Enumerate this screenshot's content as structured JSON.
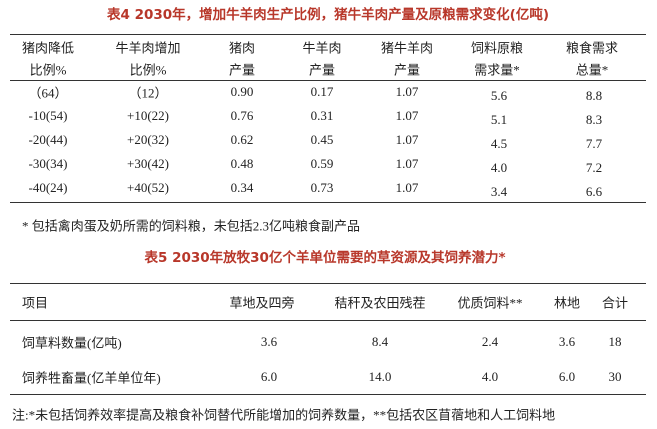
{
  "table4": {
    "title": "表4  2030年，增加牛羊肉生产比例，猪牛羊肉产量及原粮需求变化(亿吨)",
    "header": [
      [
        "猪肉降低",
        "比例%"
      ],
      [
        "牛羊肉增加",
        "比例%"
      ],
      [
        "猪肉",
        "产量"
      ],
      [
        "牛羊肉",
        "产量"
      ],
      [
        "猪牛羊肉",
        "产量"
      ],
      [
        "饲料原粮",
        "需求量*"
      ],
      [
        "粮食需求",
        "总量*"
      ]
    ],
    "rows": [
      [
        "（64）",
        "（12）",
        "0.90",
        "0.17",
        "1.07",
        "5.6",
        "8.8"
      ],
      [
        "-10(54)",
        "+10(22)",
        "0.76",
        "0.31",
        "1.07",
        "5.1",
        "8.3"
      ],
      [
        "-20(44)",
        "+20(32)",
        "0.62",
        "0.45",
        "1.07",
        "4.5",
        "7.7"
      ],
      [
        "-30(34)",
        "+30(42)",
        "0.48",
        "0.59",
        "1.07",
        "4.0",
        "7.2"
      ],
      [
        "-40(24)",
        "+40(52)",
        "0.34",
        "0.73",
        "1.07",
        "3.4",
        "6.6"
      ]
    ],
    "note": "* 包括禽肉蛋及奶所需的饲料粮，未包括2.3亿吨粮食副产品"
  },
  "table5": {
    "title": "表5  2030年放牧30亿个羊单位需要的草资源及其饲养潜力*",
    "header": [
      "项目",
      "草地及四旁",
      "秸秆及农田残茬",
      "优质饲料**",
      "林地",
      "合计"
    ],
    "rows": [
      [
        "饲草料数量(亿吨)",
        "3.6",
        "8.4",
        "2.4",
        "3.6",
        "18"
      ],
      [
        "饲养牲畜量(亿羊单位年)",
        "6.0",
        "14.0",
        "4.0",
        "6.0",
        "30"
      ]
    ],
    "note": "注:*未包括饲养效率提高及粮食补饲替代所能增加的饲养数量，**包括农区苜蓿地和人工饲料地"
  }
}
